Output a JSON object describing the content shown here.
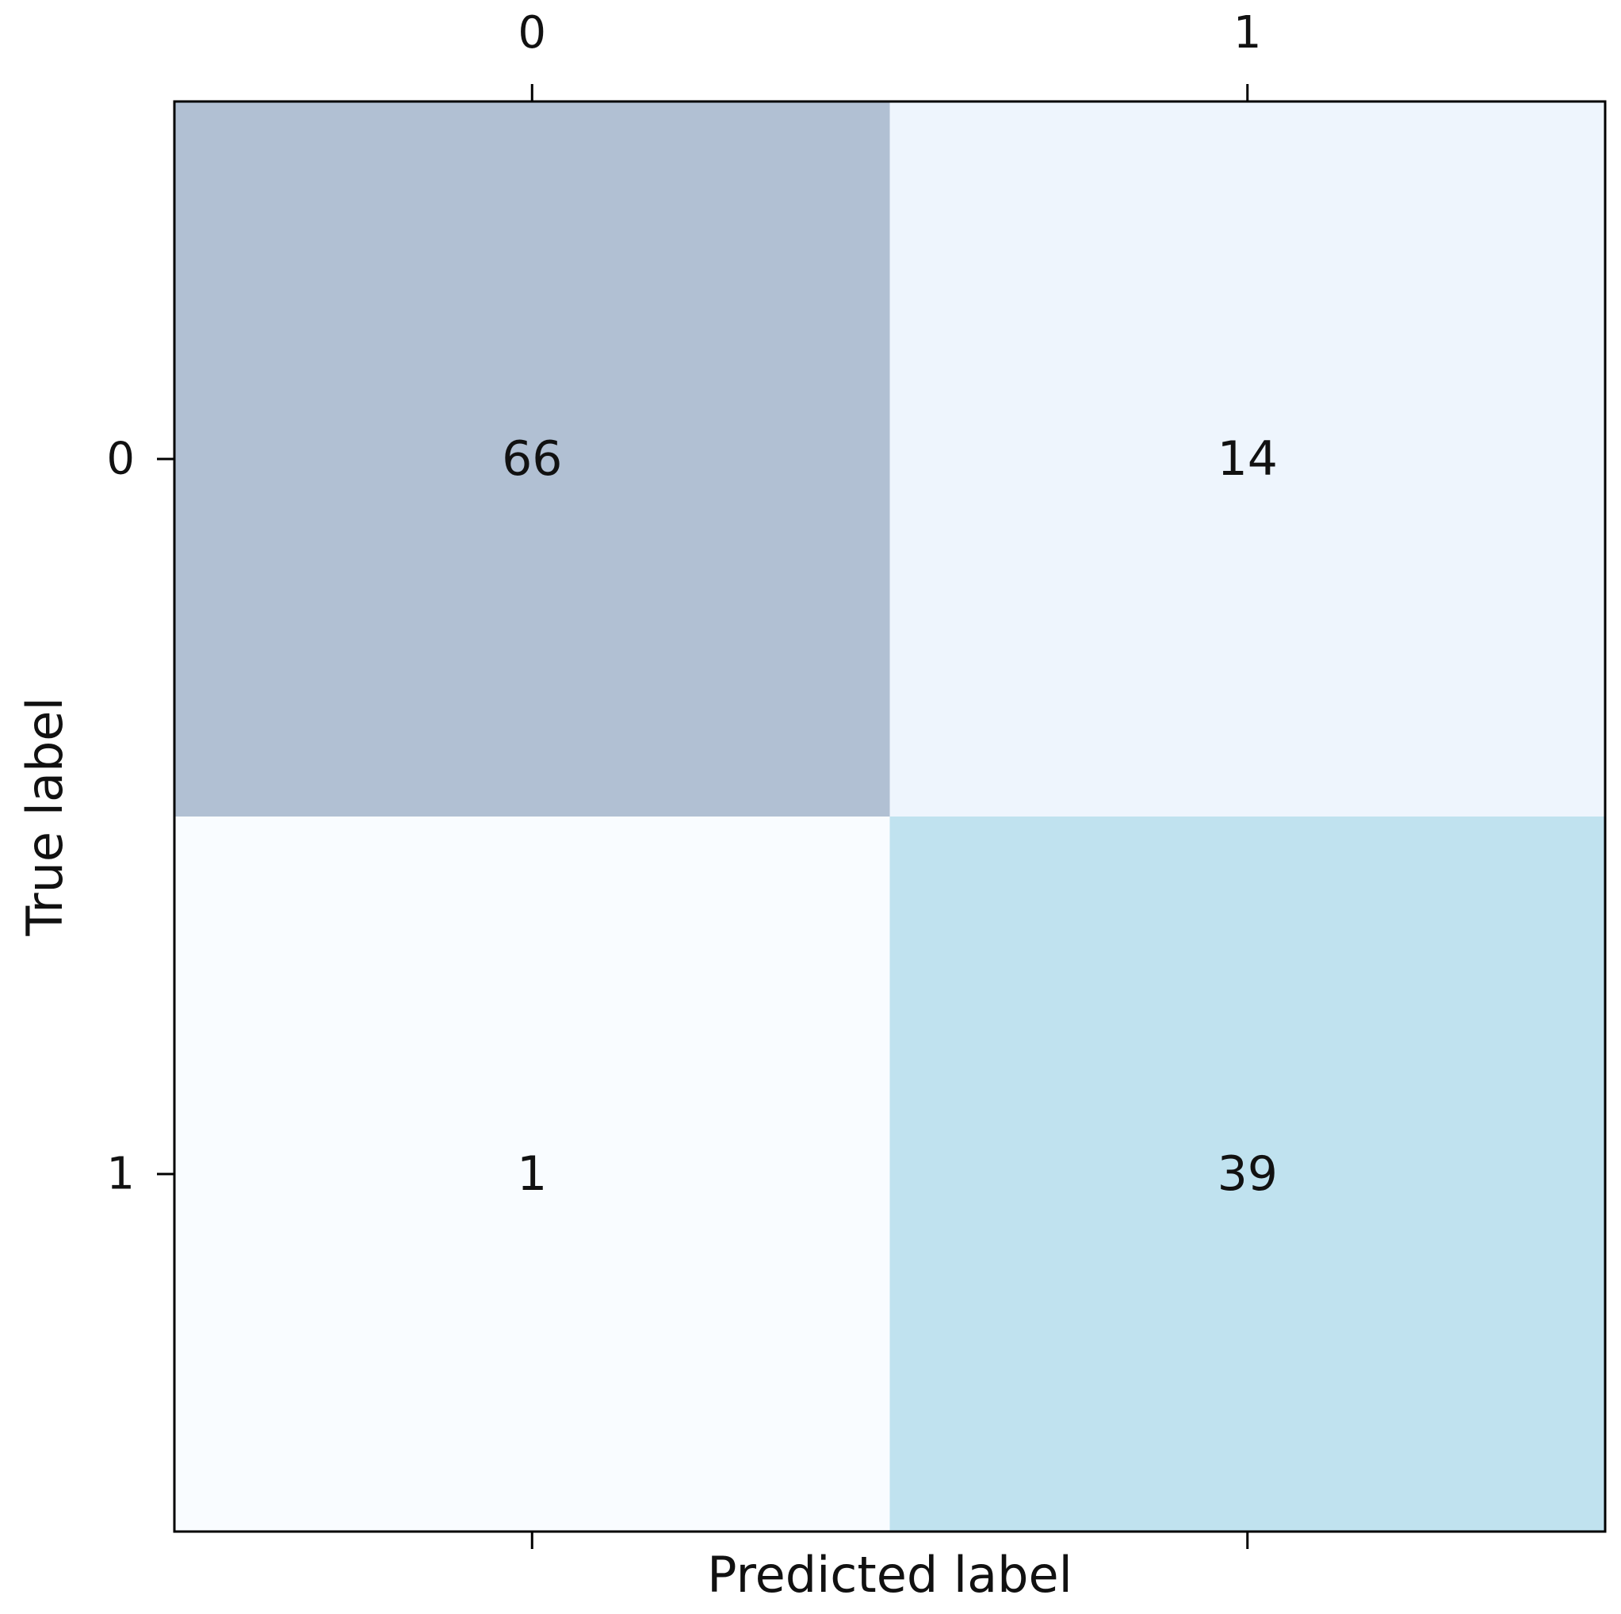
{
  "chart_data": {
    "type": "heatmap",
    "title": "",
    "xlabel": "Predicted label",
    "ylabel": "True label",
    "x_categories": [
      "0",
      "1"
    ],
    "y_categories": [
      "0",
      "1"
    ],
    "values": [
      [
        66,
        14
      ],
      [
        1,
        39
      ]
    ],
    "cell_colors": [
      [
        "#b1c0d3",
        "#eef5fd"
      ],
      [
        "#f9fcff",
        "#c0e2ef"
      ]
    ],
    "x_ticks_position": "top",
    "grid": false
  }
}
